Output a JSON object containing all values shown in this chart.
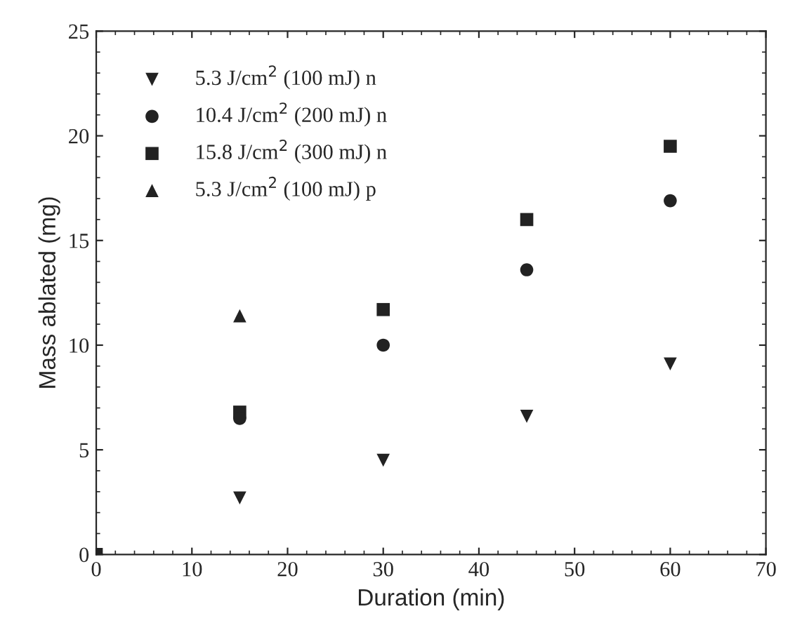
{
  "chart_data": {
    "type": "scatter",
    "xlabel": "Duration (min)",
    "ylabel": "Mass ablated (mg)",
    "xlim": [
      0,
      70
    ],
    "xticks": [
      0,
      10,
      20,
      30,
      40,
      50,
      60,
      70
    ],
    "ylim": [
      0,
      25
    ],
    "yticks": [
      0,
      5,
      10,
      15,
      20,
      25
    ],
    "grid": false,
    "legend": "top left",
    "series": [
      {
        "name": "5.3 J/cm$^{2}$ (100 mJ) n",
        "color": "#222222",
        "marker": "triangle_down",
        "x": [
          15,
          30,
          45,
          60
        ],
        "values": [
          2.7,
          4.5,
          6.6,
          9.1
        ]
      },
      {
        "name": "10.4 J/cm$^{2}$ (200 mJ) n",
        "color": "#222222",
        "marker": "circle",
        "x": [
          15,
          30,
          45,
          60
        ],
        "values": [
          6.5,
          10.0,
          13.6,
          16.9
        ]
      },
      {
        "name": "15.8 J/cm$^{2}$ (300 mJ) n",
        "color": "#222222",
        "marker": "square",
        "x": [
          0,
          15,
          30,
          45,
          60
        ],
        "values": [
          0,
          6.8,
          11.7,
          16.0,
          19.5
        ]
      },
      {
        "name": "5.3 J/cm$^{2}$ (100 mJ) p",
        "color": "#222222",
        "marker": "triangle",
        "x": [
          15
        ],
        "values": [
          11.4
        ]
      }
    ]
  }
}
